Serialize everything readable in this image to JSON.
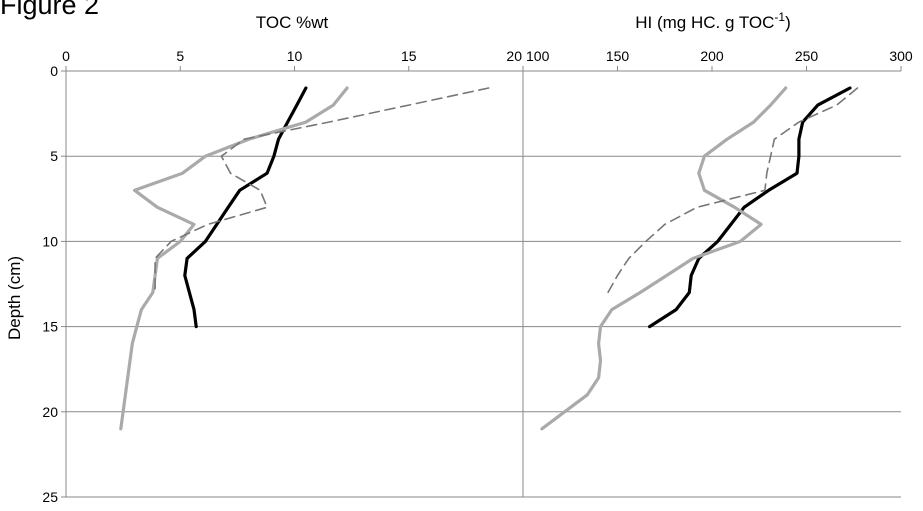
{
  "figure_label": "Figure 2",
  "chart_data": [
    {
      "type": "line",
      "title": "",
      "xlabel": "TOC %wt",
      "ylabel": "Depth (cm)",
      "xlim": [
        0,
        20
      ],
      "ylim": [
        0,
        25
      ],
      "y_inverted": true,
      "x_axis_position": "top",
      "xticks": [
        "0",
        "5",
        "10",
        "15",
        "20"
      ],
      "yticks": [
        "0",
        "5",
        "10",
        "15",
        "20",
        "25"
      ],
      "grid": "horizontal",
      "series": [
        {
          "color": "#000000",
          "style": "solid",
          "points": [
            [
              10.5,
              1
            ],
            [
              10.1,
              2
            ],
            [
              9.7,
              3
            ],
            [
              9.3,
              4
            ],
            [
              9.1,
              5
            ],
            [
              8.8,
              6
            ],
            [
              7.6,
              7
            ],
            [
              7.1,
              8
            ],
            [
              6.6,
              9
            ],
            [
              6.1,
              10
            ],
            [
              5.3,
              11
            ],
            [
              5.2,
              12
            ],
            [
              5.4,
              13
            ],
            [
              5.6,
              14
            ],
            [
              5.7,
              15
            ]
          ]
        },
        {
          "color": "#aaaaaa",
          "style": "solid",
          "points": [
            [
              12.3,
              1
            ],
            [
              11.7,
              2
            ],
            [
              10.5,
              3
            ],
            [
              8.0,
              4
            ],
            [
              6.1,
              5
            ],
            [
              5.1,
              6
            ],
            [
              3.0,
              7
            ],
            [
              4.0,
              8
            ],
            [
              5.6,
              9
            ],
            [
              5.0,
              10
            ],
            [
              4.0,
              11
            ],
            [
              3.9,
              12
            ],
            [
              3.8,
              13
            ],
            [
              3.3,
              14
            ],
            [
              3.1,
              15
            ],
            [
              2.9,
              16
            ],
            [
              2.8,
              17
            ],
            [
              2.7,
              18
            ],
            [
              2.6,
              19
            ],
            [
              2.5,
              20
            ],
            [
              2.4,
              21
            ]
          ]
        },
        {
          "color": "#777777",
          "style": "dashed",
          "points": [
            [
              18.5,
              1
            ],
            [
              15.0,
              2
            ],
            [
              11.5,
              3
            ],
            [
              7.8,
              4
            ],
            [
              6.8,
              5
            ],
            [
              7.2,
              6
            ],
            [
              8.5,
              7
            ],
            [
              8.8,
              8
            ],
            [
              6.2,
              9
            ],
            [
              4.6,
              10
            ],
            [
              3.9,
              11
            ],
            [
              3.9,
              12
            ],
            [
              3.9,
              13
            ]
          ]
        }
      ]
    },
    {
      "type": "line",
      "title": "",
      "xlabel": "HI (mg HC. g TOC",
      "xlabel_sup": "-1",
      "xlabel_close": ")",
      "ylabel": "",
      "xlim": [
        100,
        300
      ],
      "ylim": [
        0,
        25
      ],
      "y_inverted": true,
      "x_axis_position": "top",
      "xticks": [
        "100",
        "150",
        "200",
        "250",
        "300"
      ],
      "grid": "horizontal",
      "series": [
        {
          "color": "#000000",
          "style": "solid",
          "points": [
            [
              273,
              1
            ],
            [
              256,
              2
            ],
            [
              248,
              3
            ],
            [
              246,
              4
            ],
            [
              246,
              5
            ],
            [
              245,
              6
            ],
            [
              230,
              7
            ],
            [
              217,
              8
            ],
            [
              210,
              9
            ],
            [
              203,
              10
            ],
            [
              193,
              11
            ],
            [
              189,
              12
            ],
            [
              188,
              13
            ],
            [
              181,
              14
            ],
            [
              167,
              15
            ]
          ]
        },
        {
          "color": "#aaaaaa",
          "style": "solid",
          "points": [
            [
              239,
              1
            ],
            [
              231,
              2
            ],
            [
              222,
              3
            ],
            [
              208,
              4
            ],
            [
              196,
              5
            ],
            [
              193,
              6
            ],
            [
              196,
              7
            ],
            [
              212,
              8
            ],
            [
              226,
              9
            ],
            [
              215,
              10
            ],
            [
              190,
              11
            ],
            [
              176,
              12
            ],
            [
              162,
              13
            ],
            [
              147,
              14
            ],
            [
              141,
              15
            ],
            [
              140,
              16
            ],
            [
              141,
              17
            ],
            [
              140,
              18
            ],
            [
              134,
              19
            ],
            [
              122,
              20
            ],
            [
              110,
              21
            ]
          ]
        },
        {
          "color": "#777777",
          "style": "dashed",
          "points": [
            [
              277,
              1
            ],
            [
              266,
              2
            ],
            [
              246,
              3
            ],
            [
              233,
              4
            ],
            [
              231,
              5
            ],
            [
              229,
              6
            ],
            [
              228,
              7
            ],
            [
              192,
              8
            ],
            [
              175,
              9
            ],
            [
              165,
              10
            ],
            [
              156,
              11
            ],
            [
              150,
              12
            ],
            [
              145,
              13
            ]
          ]
        }
      ]
    }
  ]
}
